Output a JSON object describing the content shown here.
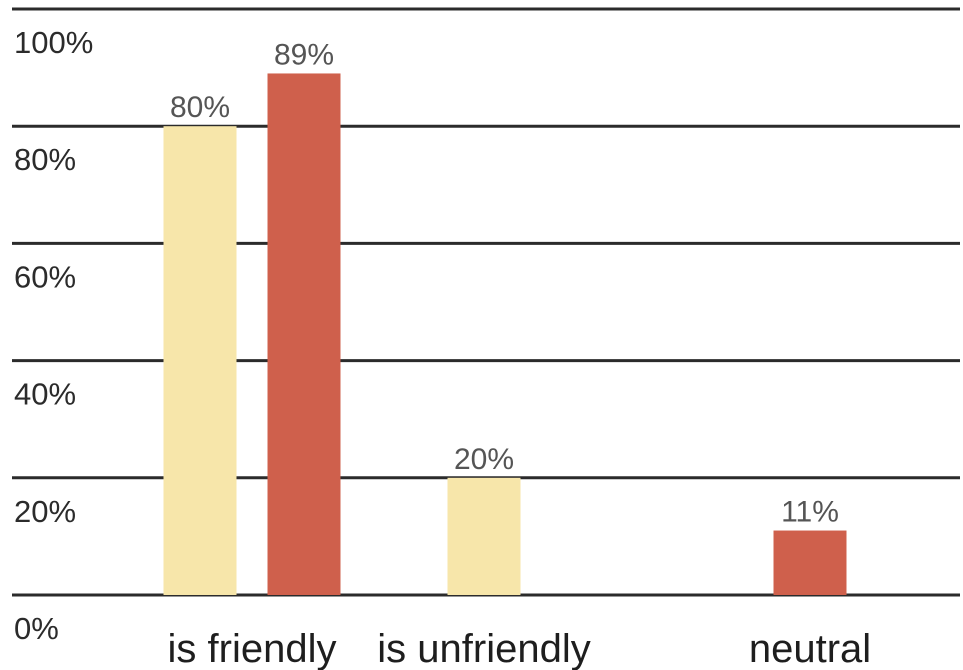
{
  "chart_data": {
    "type": "bar",
    "categories": [
      "is friendly",
      "is unfriendly",
      "neutral"
    ],
    "series": [
      {
        "color": "#f7e6aa",
        "values": [
          80,
          20,
          null
        ],
        "labels": [
          "80%",
          "20%",
          ""
        ]
      },
      {
        "color": "#cf604c",
        "values": [
          89,
          null,
          11
        ],
        "labels": [
          "89%",
          "",
          "11%"
        ]
      }
    ],
    "y_ticks": [
      {
        "value": 0,
        "label": "0%"
      },
      {
        "value": 20,
        "label": "20%"
      },
      {
        "value": 40,
        "label": "40%"
      },
      {
        "value": 60,
        "label": "60%"
      },
      {
        "value": 80,
        "label": "80%"
      },
      {
        "value": 100,
        "label": "100%"
      }
    ],
    "ylim": [
      0,
      100
    ],
    "title": "",
    "xlabel": "",
    "ylabel": "",
    "grid": true,
    "legend": "none",
    "colors": {
      "gridline": "#2b2b2b",
      "background": "#ffffff"
    }
  }
}
